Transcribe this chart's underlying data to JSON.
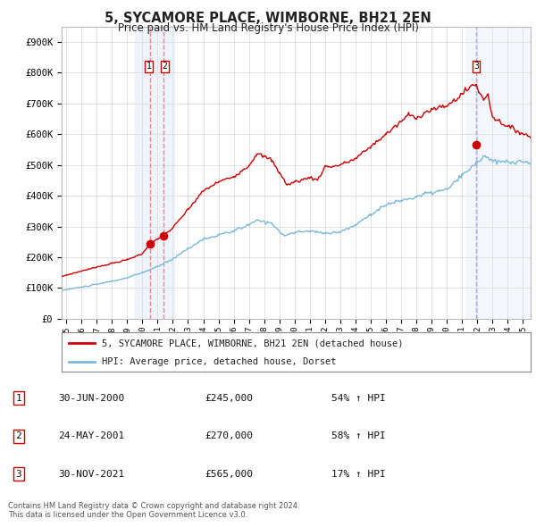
{
  "title": "5, SYCAMORE PLACE, WIMBORNE, BH21 2EN",
  "subtitle": "Price paid vs. HM Land Registry's House Price Index (HPI)",
  "legend_line1": "5, SYCAMORE PLACE, WIMBORNE, BH21 2EN (detached house)",
  "legend_line2": "HPI: Average price, detached house, Dorset",
  "footer1": "Contains HM Land Registry data © Crown copyright and database right 2024.",
  "footer2": "This data is licensed under the Open Government Licence v3.0.",
  "transactions": [
    {
      "num": 1,
      "date": "30-JUN-2000",
      "price": 245000,
      "pct": "54%",
      "dir": "↑",
      "x": 2000.5
    },
    {
      "num": 2,
      "date": "24-MAY-2001",
      "price": 270000,
      "pct": "58%",
      "dir": "↑",
      "x": 2001.4
    },
    {
      "num": 3,
      "date": "30-NOV-2021",
      "price": 565000,
      "pct": "17%",
      "dir": "↑",
      "x": 2021.92
    }
  ],
  "hpi_color": "#7ab8d9",
  "price_color": "#cc0000",
  "dot_color": "#cc0000",
  "vline_color_12": "#ee8888",
  "vline_color_3": "#aaaadd",
  "shade_color_12": "#e8f0f8",
  "shade_color_3": "#e8f0f8",
  "grid_color": "#dddddd",
  "background_color": "#ffffff",
  "ylim_max": 950000,
  "xlim_start": 1994.7,
  "xlim_end": 2025.5,
  "yticks": [
    0,
    100000,
    200000,
    300000,
    400000,
    500000,
    600000,
    700000,
    800000,
    900000
  ],
  "ylabels": [
    "£0",
    "£100K",
    "£200K",
    "£300K",
    "£400K",
    "£500K",
    "£600K",
    "£700K",
    "£800K",
    "£900K"
  ],
  "xticks": [
    1995,
    1996,
    1997,
    1998,
    1999,
    2000,
    2001,
    2002,
    2003,
    2004,
    2005,
    2006,
    2007,
    2008,
    2009,
    2010,
    2011,
    2012,
    2013,
    2014,
    2015,
    2016,
    2017,
    2018,
    2019,
    2020,
    2021,
    2022,
    2023,
    2024,
    2025
  ]
}
